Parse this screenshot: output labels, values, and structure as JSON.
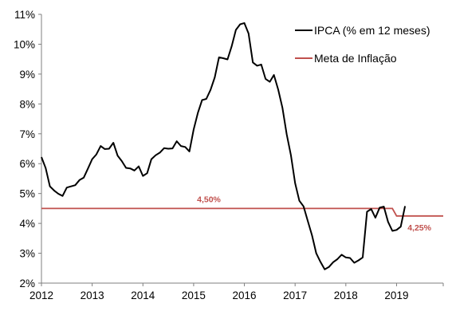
{
  "chart_data": {
    "type": "line",
    "title": "",
    "xlabel": "",
    "ylabel": "",
    "xlim": [
      2012,
      2019.92
    ],
    "ylim": [
      2,
      11
    ],
    "x_ticks": [
      "2012",
      "2013",
      "2014",
      "2015",
      "2016",
      "2017",
      "2018",
      "2019"
    ],
    "y_ticks": [
      "2%",
      "3%",
      "4%",
      "5%",
      "6%",
      "7%",
      "8%",
      "9%",
      "10%",
      "11%"
    ],
    "grid": false,
    "legend_position": "top-right",
    "series": [
      {
        "name": "IPCA (% em 12 meses)",
        "color": "#000000",
        "points": [
          [
            2012.0,
            6.22
          ],
          [
            2012.083,
            5.85
          ],
          [
            2012.167,
            5.24
          ],
          [
            2012.25,
            5.1
          ],
          [
            2012.333,
            4.99
          ],
          [
            2012.417,
            4.92
          ],
          [
            2012.5,
            5.2
          ],
          [
            2012.583,
            5.24
          ],
          [
            2012.667,
            5.28
          ],
          [
            2012.75,
            5.45
          ],
          [
            2012.833,
            5.53
          ],
          [
            2012.917,
            5.84
          ],
          [
            2013.0,
            6.15
          ],
          [
            2013.083,
            6.31
          ],
          [
            2013.167,
            6.59
          ],
          [
            2013.25,
            6.49
          ],
          [
            2013.333,
            6.5
          ],
          [
            2013.417,
            6.7
          ],
          [
            2013.5,
            6.27
          ],
          [
            2013.583,
            6.09
          ],
          [
            2013.667,
            5.86
          ],
          [
            2013.75,
            5.84
          ],
          [
            2013.833,
            5.77
          ],
          [
            2013.917,
            5.91
          ],
          [
            2014.0,
            5.59
          ],
          [
            2014.083,
            5.68
          ],
          [
            2014.167,
            6.15
          ],
          [
            2014.25,
            6.28
          ],
          [
            2014.333,
            6.37
          ],
          [
            2014.417,
            6.52
          ],
          [
            2014.5,
            6.5
          ],
          [
            2014.583,
            6.51
          ],
          [
            2014.667,
            6.75
          ],
          [
            2014.75,
            6.59
          ],
          [
            2014.833,
            6.56
          ],
          [
            2014.917,
            6.41
          ],
          [
            2015.0,
            7.14
          ],
          [
            2015.083,
            7.7
          ],
          [
            2015.167,
            8.13
          ],
          [
            2015.25,
            8.17
          ],
          [
            2015.333,
            8.47
          ],
          [
            2015.417,
            8.89
          ],
          [
            2015.5,
            9.56
          ],
          [
            2015.583,
            9.53
          ],
          [
            2015.667,
            9.49
          ],
          [
            2015.75,
            9.93
          ],
          [
            2015.833,
            10.48
          ],
          [
            2015.917,
            10.67
          ],
          [
            2016.0,
            10.71
          ],
          [
            2016.083,
            10.36
          ],
          [
            2016.167,
            9.39
          ],
          [
            2016.25,
            9.28
          ],
          [
            2016.333,
            9.32
          ],
          [
            2016.417,
            8.84
          ],
          [
            2016.5,
            8.74
          ],
          [
            2016.583,
            8.97
          ],
          [
            2016.667,
            8.48
          ],
          [
            2016.75,
            7.87
          ],
          [
            2016.833,
            6.99
          ],
          [
            2016.917,
            6.29
          ],
          [
            2017.0,
            5.35
          ],
          [
            2017.083,
            4.76
          ],
          [
            2017.167,
            4.57
          ],
          [
            2017.25,
            4.08
          ],
          [
            2017.333,
            3.6
          ],
          [
            2017.417,
            3.0
          ],
          [
            2017.5,
            2.71
          ],
          [
            2017.583,
            2.46
          ],
          [
            2017.667,
            2.54
          ],
          [
            2017.75,
            2.7
          ],
          [
            2017.833,
            2.8
          ],
          [
            2017.917,
            2.95
          ],
          [
            2018.0,
            2.86
          ],
          [
            2018.083,
            2.84
          ],
          [
            2018.167,
            2.68
          ],
          [
            2018.25,
            2.76
          ],
          [
            2018.333,
            2.86
          ],
          [
            2018.417,
            4.39
          ],
          [
            2018.5,
            4.48
          ],
          [
            2018.583,
            4.19
          ],
          [
            2018.667,
            4.53
          ],
          [
            2018.75,
            4.56
          ],
          [
            2018.833,
            4.05
          ],
          [
            2018.917,
            3.75
          ],
          [
            2019.0,
            3.78
          ],
          [
            2019.083,
            3.89
          ],
          [
            2019.167,
            4.58
          ]
        ]
      },
      {
        "name": "Meta de Inflação",
        "color": "#c0504d",
        "points": [
          [
            2012.0,
            4.5
          ],
          [
            2018.917,
            4.5
          ],
          [
            2019.0,
            4.25
          ],
          [
            2019.92,
            4.25
          ]
        ]
      }
    ],
    "annotations": [
      {
        "text": "4,50%",
        "x": 2015.3,
        "y": 4.5,
        "color": "#c0504d"
      },
      {
        "text": "4,25%",
        "x": 2019.45,
        "y": 4.25,
        "color": "#c0504d"
      }
    ]
  }
}
